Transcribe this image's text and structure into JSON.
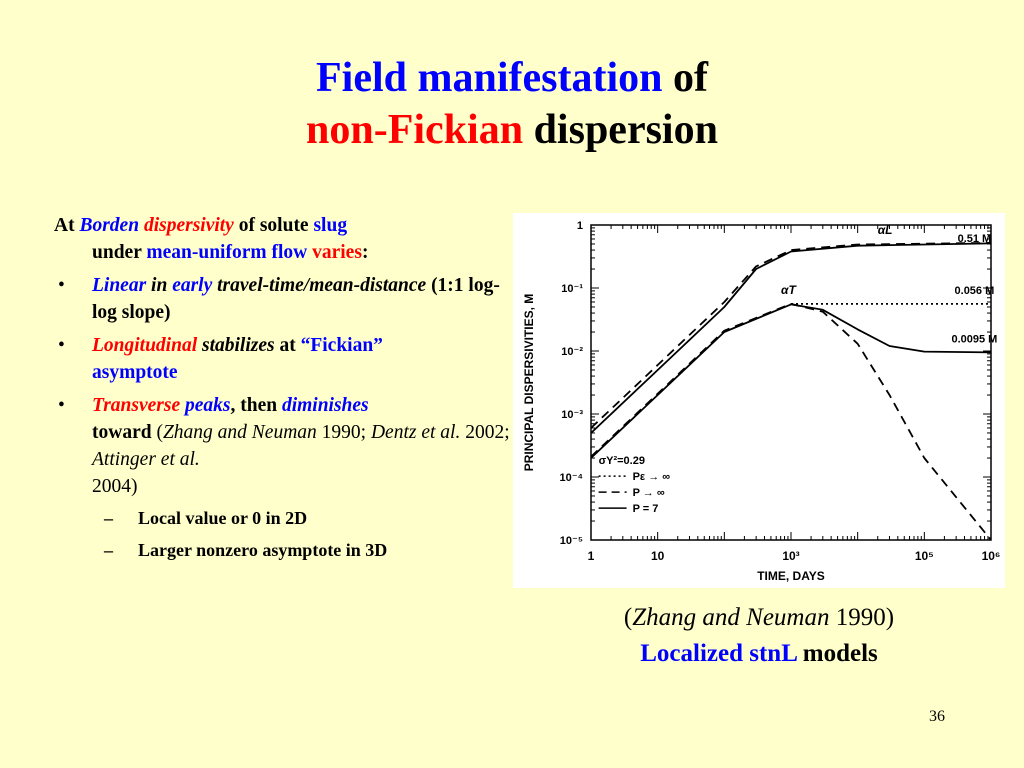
{
  "slide": {
    "title_part1": "Field manifestation",
    "title_part2": " of",
    "title_part3": "non-Fickian",
    "title_part4": " dispersion",
    "page_number": "36"
  },
  "bullets": {
    "intro": {
      "a": "At ",
      "b": "Borden",
      "c": " ",
      "d": "dispersivity",
      "e": " of solute ",
      "f": "slug",
      "g": "under ",
      "h": "mean-uniform flow",
      "i": " ",
      "j": "varies",
      "k": ":"
    },
    "item1": {
      "a": "Linear",
      "b": " in ",
      "c": "early",
      "d": " travel-time/mean-distance",
      "e": "  (1:1 log-log slope)"
    },
    "item2": {
      "a": "Longitudinal",
      "b": " stabilizes",
      "c": " at ",
      "d": "“Fickian”",
      "e": " asymptote"
    },
    "item3": {
      "a": "Transverse",
      "b": " peaks",
      "c": ", then ",
      "d": "diminishes",
      "e": " toward ",
      "f": "(",
      "g": "Zhang and Neuman",
      "h": " 1990; ",
      "i": "Dentz et al.",
      "j": " 2002; ",
      "k": "Attinger et al.",
      "l": " 2004)"
    },
    "sub1": "Local value or 0 in 2D",
    "sub2": "Larger nonzero asymptote in 3D",
    "bullet_mark": "•",
    "dash_mark": "–"
  },
  "caption": {
    "line1_a": "(",
    "line1_b": "Zhang and Neuman",
    "line1_c": " 1990)",
    "line2_a": "Localized stnL",
    "line2_b": " models"
  },
  "chart_data": {
    "type": "line",
    "xlabel": "TIME, DAYS",
    "ylabel": "PRINCIPAL DISPERSIVITIES, M",
    "xscale": "log",
    "yscale": "log",
    "xlim": [
      1,
      1000000
    ],
    "ylim": [
      1e-05,
      1
    ],
    "x_ticks": [
      "1",
      "10",
      "10³",
      "10⁵",
      "10⁶"
    ],
    "y_ticks": [
      "1",
      "10⁻¹",
      "10⁻²",
      "10⁻³",
      "10⁻⁴",
      "10⁻⁵"
    ],
    "curve_labels": [
      "αL",
      "αT"
    ],
    "annotations": [
      "0.51 M",
      "0.056 M",
      "0.0095 M"
    ],
    "legend": [
      "σY²=0.29",
      "Pε → ∞",
      "P → ∞",
      "P = 7"
    ],
    "series": [
      {
        "name": "αL, P = 7",
        "style": "solid",
        "x": [
          1,
          10,
          100,
          300,
          1000,
          10000,
          1000000
        ],
        "y": [
          0.0005,
          0.005,
          0.05,
          0.2,
          0.38,
          0.47,
          0.51
        ]
      },
      {
        "name": "αL, P → ∞",
        "style": "dashed",
        "x": [
          1,
          10,
          100,
          300,
          1000,
          10000,
          1000000
        ],
        "y": [
          0.0006,
          0.006,
          0.06,
          0.22,
          0.4,
          0.49,
          0.52
        ]
      },
      {
        "name": "αT, P = 7",
        "style": "solid",
        "x": [
          1,
          10,
          100,
          1000,
          3000,
          10000,
          30000,
          100000,
          1000000
        ],
        "y": [
          0.0002,
          0.002,
          0.02,
          0.055,
          0.045,
          0.022,
          0.012,
          0.0098,
          0.0095
        ]
      },
      {
        "name": "αT, P → ∞",
        "style": "dashed",
        "x": [
          1,
          10,
          100,
          1000,
          3000,
          10000,
          30000,
          100000,
          1000000
        ],
        "y": [
          0.00021,
          0.0021,
          0.021,
          0.056,
          0.042,
          0.013,
          0.002,
          0.0002,
          5e-06
        ]
      },
      {
        "name": "αT, Pε → ∞",
        "style": "dotted",
        "x": [
          1000,
          10000,
          100000,
          1000000
        ],
        "y": [
          0.056,
          0.056,
          0.056,
          0.056
        ]
      }
    ]
  }
}
